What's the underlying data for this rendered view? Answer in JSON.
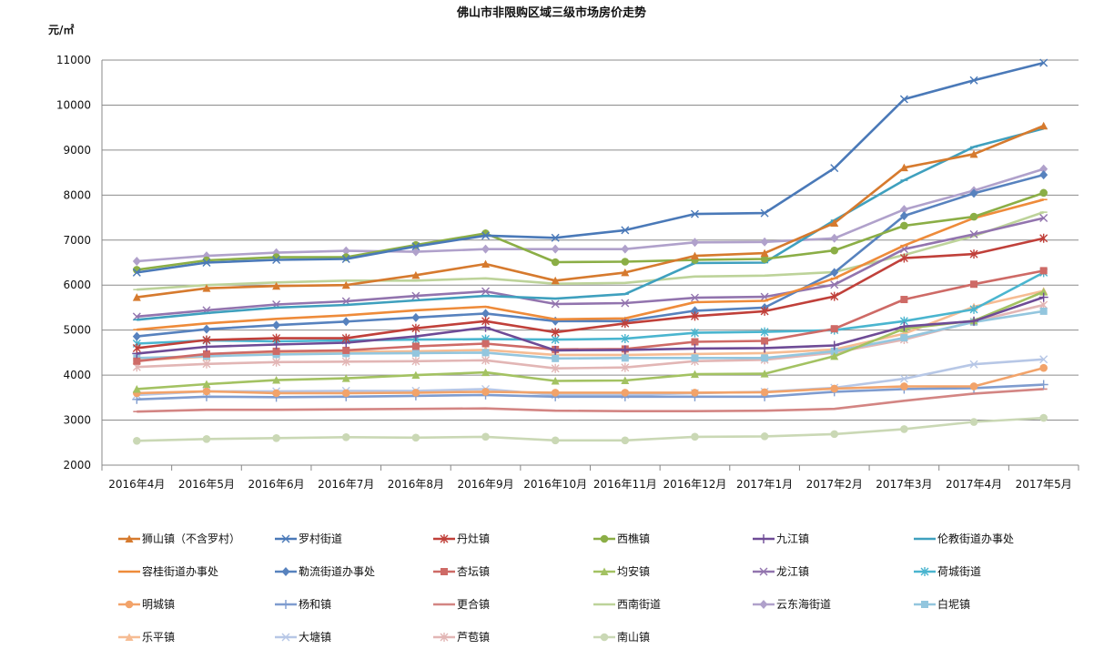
{
  "chart_data": {
    "type": "line",
    "title": "佛山市非限购区域三级市场房价走势",
    "ylabel": "元/㎡",
    "xlabel": "",
    "ylim": [
      2000,
      11000
    ],
    "yticks": [
      2000,
      3000,
      4000,
      5000,
      6000,
      7000,
      8000,
      9000,
      10000,
      11000
    ],
    "categories": [
      "2016年4月",
      "2016年5月",
      "2016年6月",
      "2016年7月",
      "2016年8月",
      "2016年9月",
      "2016年10月",
      "2016年11月",
      "2016年12月",
      "2017年1月",
      "2017年2月",
      "2017年3月",
      "2017年4月",
      "2017年5月"
    ],
    "grid": "horizontal",
    "legend_position": "bottom",
    "series": [
      {
        "name": "狮山镇（不含罗村）",
        "color": "#D67A2E",
        "marker": "triangle",
        "values": [
          5730,
          5930,
          5980,
          6000,
          6220,
          6470,
          6100,
          6280,
          6650,
          6710,
          7380,
          8610,
          8910,
          9540
        ]
      },
      {
        "name": "罗村街道",
        "color": "#4A79B8",
        "marker": "x",
        "values": [
          6280,
          6500,
          6560,
          6580,
          6860,
          7100,
          7050,
          7220,
          7580,
          7600,
          8600,
          10130,
          10550,
          10940
        ]
      },
      {
        "name": "丹灶镇",
        "color": "#C0403A",
        "marker": "asterisk",
        "values": [
          4600,
          4780,
          4820,
          4820,
          5040,
          5200,
          4950,
          5150,
          5310,
          5420,
          5750,
          6600,
          6690,
          7040
        ]
      },
      {
        "name": "西樵镇",
        "color": "#8BAE46",
        "marker": "circle",
        "values": [
          6340,
          6550,
          6620,
          6620,
          6890,
          7150,
          6510,
          6520,
          6560,
          6580,
          6770,
          7320,
          7520,
          8050
        ]
      },
      {
        "name": "九江镇",
        "color": "#6E4B96",
        "marker": "plus",
        "values": [
          4480,
          4630,
          4680,
          4720,
          4860,
          5060,
          4550,
          4560,
          4590,
          4600,
          4660,
          5080,
          5200,
          5730
        ]
      },
      {
        "name": "伦教街道办事处",
        "color": "#3FA0BE",
        "marker": "minus",
        "values": [
          5230,
          5380,
          5500,
          5560,
          5660,
          5760,
          5700,
          5800,
          6490,
          6500,
          7440,
          8330,
          9070,
          9480
        ]
      },
      {
        "name": "容桂街道办事处",
        "color": "#EE8B3A",
        "marker": "minus",
        "values": [
          5010,
          5150,
          5250,
          5330,
          5440,
          5520,
          5240,
          5260,
          5620,
          5650,
          6150,
          6880,
          7490,
          7900
        ]
      },
      {
        "name": "勒流街道办事处",
        "color": "#5782BE",
        "marker": "diamond",
        "values": [
          4860,
          5020,
          5110,
          5190,
          5280,
          5370,
          5200,
          5200,
          5430,
          5500,
          6280,
          7540,
          8040,
          8450
        ]
      },
      {
        "name": "杏坛镇",
        "color": "#CE6A66",
        "marker": "square",
        "values": [
          4310,
          4470,
          4530,
          4550,
          4640,
          4700,
          4570,
          4580,
          4740,
          4760,
          5030,
          5680,
          6020,
          6320
        ]
      },
      {
        "name": "均安镇",
        "color": "#A3C262",
        "marker": "triangle",
        "values": [
          3690,
          3800,
          3890,
          3930,
          4000,
          4060,
          3870,
          3880,
          4020,
          4030,
          4420,
          5030,
          5210,
          5850
        ]
      },
      {
        "name": "龙江镇",
        "color": "#9274AE",
        "marker": "x",
        "values": [
          5300,
          5440,
          5570,
          5640,
          5760,
          5860,
          5580,
          5600,
          5720,
          5740,
          6010,
          6800,
          7130,
          7490
        ]
      },
      {
        "name": "荷城街道",
        "color": "#4AB5CF",
        "marker": "asterisk",
        "values": [
          4700,
          4770,
          4750,
          4770,
          4790,
          4800,
          4790,
          4810,
          4940,
          4960,
          5000,
          5200,
          5460,
          6280
        ]
      },
      {
        "name": "明城镇",
        "color": "#F2A36A",
        "marker": "circle",
        "values": [
          3600,
          3640,
          3600,
          3600,
          3610,
          3630,
          3610,
          3610,
          3610,
          3620,
          3700,
          3750,
          3750,
          4160
        ]
      },
      {
        "name": "杨和镇",
        "color": "#7F9CCF",
        "marker": "plus",
        "values": [
          3460,
          3520,
          3510,
          3520,
          3540,
          3560,
          3520,
          3520,
          3520,
          3520,
          3630,
          3690,
          3710,
          3790
        ]
      },
      {
        "name": "更合镇",
        "color": "#D38583",
        "marker": "minus",
        "values": [
          3190,
          3230,
          3230,
          3240,
          3250,
          3260,
          3210,
          3200,
          3200,
          3210,
          3250,
          3430,
          3590,
          3690
        ]
      },
      {
        "name": "西南街道",
        "color": "#BDD39A",
        "marker": "minus",
        "values": [
          5900,
          6000,
          6060,
          6100,
          6100,
          6150,
          6030,
          6050,
          6190,
          6210,
          6290,
          6670,
          7090,
          7620
        ]
      },
      {
        "name": "云东海街道",
        "color": "#B0A1CB",
        "marker": "diamond",
        "values": [
          6530,
          6650,
          6720,
          6760,
          6740,
          6800,
          6800,
          6800,
          6950,
          6960,
          7040,
          7680,
          8100,
          8580
        ]
      },
      {
        "name": "白坭镇",
        "color": "#93C6DE",
        "marker": "square",
        "values": [
          4380,
          4420,
          4460,
          4480,
          4490,
          4500,
          4370,
          4380,
          4380,
          4380,
          4530,
          4830,
          5180,
          5420
        ]
      },
      {
        "name": "乐平镇",
        "color": "#F6BC93",
        "marker": "triangle",
        "values": [
          4330,
          4410,
          4500,
          4520,
          4530,
          4560,
          4450,
          4450,
          4470,
          4490,
          4570,
          4920,
          5520,
          5870
        ]
      },
      {
        "name": "大塘镇",
        "color": "#B7C7E6",
        "marker": "x",
        "values": [
          3560,
          3640,
          3640,
          3650,
          3650,
          3690,
          3560,
          3560,
          3600,
          3630,
          3720,
          3920,
          4240,
          4350
        ]
      },
      {
        "name": "芦苞镇",
        "color": "#E2B6B5",
        "marker": "asterisk",
        "values": [
          4180,
          4250,
          4290,
          4300,
          4310,
          4330,
          4150,
          4170,
          4310,
          4340,
          4500,
          4790,
          5190,
          5560
        ]
      },
      {
        "name": "南山镇",
        "color": "#CAD8B5",
        "marker": "circle",
        "values": [
          2540,
          2580,
          2600,
          2620,
          2610,
          2630,
          2550,
          2550,
          2630,
          2640,
          2690,
          2800,
          2960,
          3050
        ]
      }
    ]
  }
}
